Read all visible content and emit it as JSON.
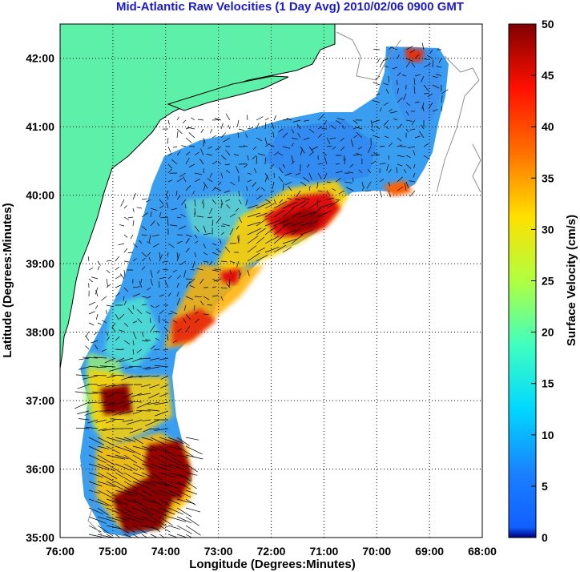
{
  "title": "Mid-Atlantic Raw Velocities (1 Day Avg) 2010/02/06 0900 GMT",
  "map": {
    "xlabel": "Longitude (Degrees:Minutes)",
    "ylabel": "Latitude (Degrees:Minutes)",
    "lon_ticks": [
      "76:00",
      "75:00",
      "74:00",
      "73:00",
      "72:00",
      "71:00",
      "70:00",
      "69:00",
      "68:00"
    ],
    "lat_ticks": [
      "35:00",
      "36:00",
      "37:00",
      "38:00",
      "39:00",
      "40:00",
      "41:00",
      "42:00"
    ],
    "lon_range": [
      -76,
      -68
    ],
    "lat_range": [
      35,
      42.5
    ],
    "land_color": "#5cf0a8",
    "grid": true
  },
  "colorbar": {
    "label": "Surface Velocity (cm/s)",
    "ticks": [
      "0",
      "5",
      "10",
      "15",
      "20",
      "25",
      "30",
      "35",
      "40",
      "45",
      "50"
    ],
    "range": [
      0,
      50
    ],
    "colormap": "jet"
  }
}
